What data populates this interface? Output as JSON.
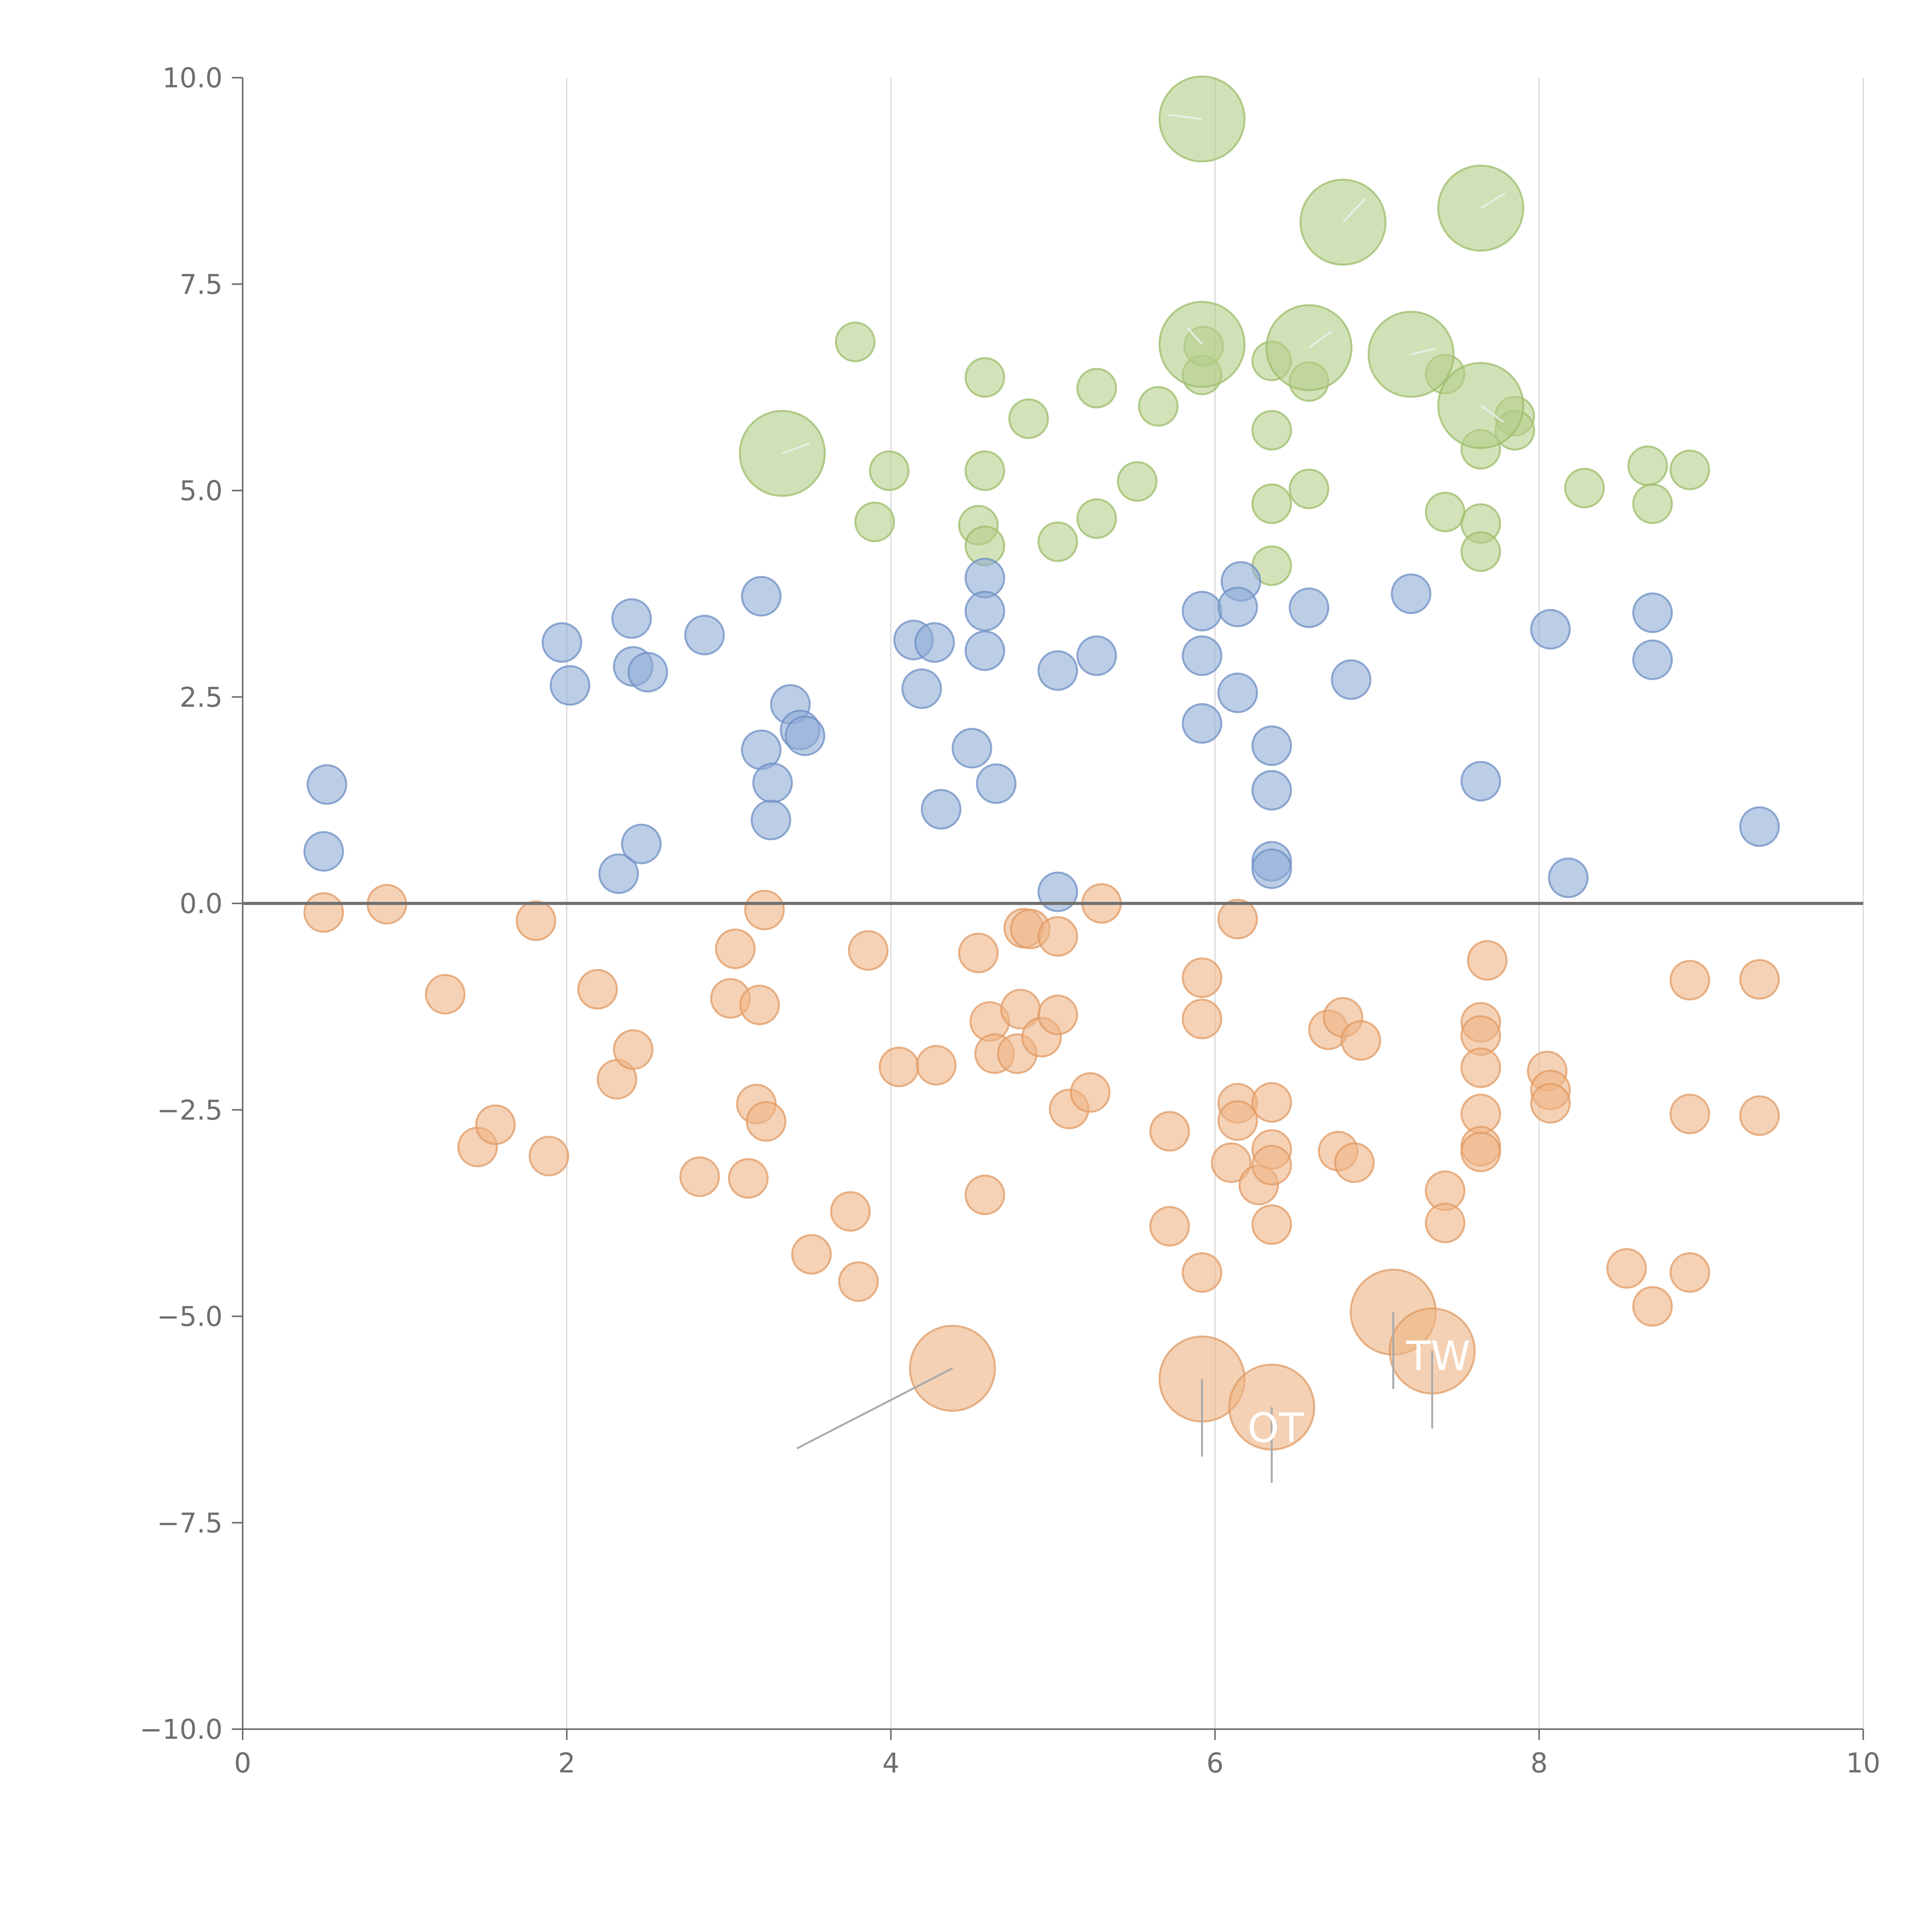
{
  "chart_data": {
    "type": "scatter",
    "title": "",
    "xlabel": "",
    "ylabel": "",
    "xlim": [
      0,
      10
    ],
    "ylim": [
      -10,
      10
    ],
    "xticks": [
      0,
      2,
      4,
      6,
      8,
      10
    ],
    "xtick_labels": [
      "0",
      "2",
      "4",
      "6",
      "8",
      "10"
    ],
    "yticks": [
      10,
      7.5,
      5,
      2.5,
      0,
      -2.5,
      -5,
      -7.5,
      -10
    ],
    "ytick_labels": [
      "10.0",
      "7.5",
      "5.0",
      "2.5",
      "0.0",
      "−2.5",
      "−5.0",
      "−7.5",
      "−10.0"
    ],
    "grid": "vertical",
    "reference_line_y": 0,
    "colors": {
      "green": "#b5cf8a",
      "green_edge": "#9cbc6a",
      "blue": "#8fabd6",
      "blue_edge": "#6e8fc4",
      "orange": "#eeb486",
      "orange_edge": "#e09a63",
      "axis": "#6e6e6e",
      "grid": "#d9d9d9",
      "zero_line": "#707070",
      "leader": "#aaaaaa",
      "leader_light": "#eeeeee"
    },
    "series": [
      {
        "name": "green",
        "color": "#b5cf8a",
        "points": [
          [
            3.78,
            6.8,
            1
          ],
          [
            4.58,
            6.37,
            1
          ],
          [
            5.27,
            6.24,
            1
          ],
          [
            5.65,
            6.02,
            1
          ],
          [
            4.85,
            5.87,
            1
          ],
          [
            3.99,
            5.24,
            1
          ],
          [
            4.58,
            5.24,
            1
          ],
          [
            5.52,
            5.11,
            1
          ],
          [
            3.9,
            4.62,
            1
          ],
          [
            4.54,
            4.58,
            1
          ],
          [
            4.58,
            4.33,
            1
          ],
          [
            5.03,
            4.38,
            1
          ],
          [
            5.27,
            4.66,
            1
          ],
          [
            5.92,
            6.4,
            1
          ],
          [
            5.93,
            6.75,
            1
          ],
          [
            6.35,
            6.57,
            1
          ],
          [
            6.58,
            6.32,
            1
          ],
          [
            6.35,
            5.73,
            1
          ],
          [
            6.35,
            4.84,
            1
          ],
          [
            6.58,
            5.02,
            1
          ],
          [
            6.35,
            4.09,
            1
          ],
          [
            7.42,
            6.41,
            1
          ],
          [
            7.42,
            4.74,
            1
          ],
          [
            7.64,
            5.5,
            1
          ],
          [
            7.64,
            4.6,
            1
          ],
          [
            7.64,
            4.26,
            1
          ],
          [
            7.85,
            5.9,
            1
          ],
          [
            7.85,
            5.73,
            1
          ],
          [
            8.28,
            5.03,
            1
          ],
          [
            8.67,
            5.3,
            1
          ],
          [
            8.7,
            4.84,
            1
          ],
          [
            8.93,
            5.25,
            1
          ],
          [
            3.33,
            5.45,
            2.2
          ],
          [
            5.92,
            9.5,
            2.2
          ],
          [
            6.79,
            8.25,
            2.2
          ],
          [
            7.64,
            8.42,
            2.2
          ],
          [
            5.92,
            6.77,
            2.2
          ],
          [
            6.58,
            6.73,
            2.2
          ],
          [
            7.21,
            6.65,
            2.2
          ],
          [
            7.64,
            6.03,
            2.2
          ]
        ]
      },
      {
        "name": "blue",
        "color": "#8fabd6",
        "points": [
          [
            0.52,
            1.44,
            1
          ],
          [
            0.5,
            0.63,
            1
          ],
          [
            1.97,
            3.16,
            1
          ],
          [
            2.02,
            2.64,
            1
          ],
          [
            2.4,
            3.45,
            1
          ],
          [
            2.41,
            2.87,
            1
          ],
          [
            2.5,
            2.8,
            1
          ],
          [
            2.85,
            3.25,
            1
          ],
          [
            2.32,
            0.36,
            1
          ],
          [
            2.46,
            0.72,
            1
          ],
          [
            3.2,
            3.72,
            1
          ],
          [
            3.38,
            2.41,
            1
          ],
          [
            3.44,
            2.1,
            1
          ],
          [
            3.47,
            2.03,
            1
          ],
          [
            3.2,
            1.86,
            1
          ],
          [
            3.27,
            1.46,
            1
          ],
          [
            3.26,
            1.01,
            1
          ],
          [
            4.14,
            3.19,
            1
          ],
          [
            4.27,
            3.16,
            1
          ],
          [
            4.19,
            2.6,
            1
          ],
          [
            4.31,
            1.14,
            1
          ],
          [
            4.5,
            1.88,
            1
          ],
          [
            4.65,
            1.45,
            1
          ],
          [
            4.58,
            3.94,
            1
          ],
          [
            4.58,
            3.54,
            1
          ],
          [
            4.58,
            3.06,
            1
          ],
          [
            5.03,
            2.82,
            1
          ],
          [
            5.27,
            3.0,
            1
          ],
          [
            5.03,
            0.14,
            1
          ],
          [
            5.92,
            3.54,
            1
          ],
          [
            5.92,
            3.0,
            1
          ],
          [
            5.92,
            2.18,
            1
          ],
          [
            6.16,
            3.9,
            1
          ],
          [
            6.14,
            3.59,
            1
          ],
          [
            6.14,
            2.55,
            1
          ],
          [
            6.58,
            3.58,
            1
          ],
          [
            6.35,
            1.91,
            1
          ],
          [
            6.35,
            1.37,
            1
          ],
          [
            6.35,
            0.51,
            1
          ],
          [
            6.35,
            0.42,
            1
          ],
          [
            6.84,
            2.71,
            1
          ],
          [
            7.21,
            3.75,
            1
          ],
          [
            7.64,
            1.48,
            1
          ],
          [
            8.07,
            3.32,
            1
          ],
          [
            8.18,
            0.31,
            1
          ],
          [
            8.7,
            3.52,
            1
          ],
          [
            8.7,
            2.95,
            1
          ],
          [
            9.36,
            0.93,
            1
          ]
        ]
      },
      {
        "name": "orange",
        "color": "#eeb486",
        "points": [
          [
            0.5,
            -0.11,
            1
          ],
          [
            0.89,
            -0.01,
            1
          ],
          [
            1.25,
            -1.1,
            1
          ],
          [
            1.45,
            -2.95,
            1
          ],
          [
            1.56,
            -2.68,
            1
          ],
          [
            1.81,
            -0.21,
            1
          ],
          [
            1.89,
            -3.06,
            1
          ],
          [
            2.19,
            -1.04,
            1
          ],
          [
            2.31,
            -2.13,
            1
          ],
          [
            2.41,
            -1.77,
            1
          ],
          [
            2.82,
            -3.31,
            1
          ],
          [
            3.01,
            -1.15,
            1
          ],
          [
            3.04,
            -0.55,
            1
          ],
          [
            3.12,
            -3.33,
            1
          ],
          [
            3.19,
            -1.23,
            1
          ],
          [
            3.17,
            -2.43,
            1
          ],
          [
            3.22,
            -0.08,
            1
          ],
          [
            3.23,
            -2.64,
            1
          ],
          [
            3.51,
            -4.25,
            1
          ],
          [
            3.75,
            -3.73,
            1
          ],
          [
            3.8,
            -4.58,
            1
          ],
          [
            3.86,
            -0.57,
            1
          ],
          [
            4.05,
            -1.98,
            1
          ],
          [
            4.28,
            -1.96,
            1
          ],
          [
            4.54,
            -0.6,
            1
          ],
          [
            4.58,
            -3.53,
            1
          ],
          [
            4.61,
            -1.43,
            1
          ],
          [
            4.64,
            -1.82,
            1
          ],
          [
            4.78,
            -1.82,
            1
          ],
          [
            4.8,
            -1.28,
            1
          ],
          [
            4.82,
            -0.3,
            1
          ],
          [
            4.86,
            -0.31,
            1
          ],
          [
            4.93,
            -1.62,
            1
          ],
          [
            5.03,
            -1.35,
            1
          ],
          [
            5.03,
            -0.4,
            1
          ],
          [
            5.1,
            -2.49,
            1
          ],
          [
            5.23,
            -2.29,
            1
          ],
          [
            5.3,
            0.0,
            1
          ],
          [
            5.72,
            -2.76,
            1
          ],
          [
            5.72,
            -3.91,
            1
          ],
          [
            5.92,
            -0.9,
            1
          ],
          [
            5.92,
            -1.4,
            1
          ],
          [
            5.92,
            -4.47,
            1
          ],
          [
            6.14,
            -0.19,
            1
          ],
          [
            6.14,
            -2.42,
            1
          ],
          [
            6.14,
            -2.63,
            1
          ],
          [
            6.1,
            -3.14,
            1
          ],
          [
            6.27,
            -3.41,
            1
          ],
          [
            6.35,
            -2.41,
            1
          ],
          [
            6.35,
            -2.98,
            1
          ],
          [
            6.35,
            -3.17,
            1
          ],
          [
            6.35,
            -3.89,
            1
          ],
          [
            6.7,
            -1.53,
            1
          ],
          [
            6.79,
            -1.38,
            1
          ],
          [
            6.9,
            -1.66,
            1
          ],
          [
            6.76,
            -3.0,
            1
          ],
          [
            6.86,
            -3.14,
            1
          ],
          [
            7.42,
            -3.48,
            1
          ],
          [
            7.42,
            -3.87,
            1
          ],
          [
            7.64,
            -1.44,
            1
          ],
          [
            7.64,
            -1.6,
            1
          ],
          [
            7.64,
            -1.99,
            1
          ],
          [
            7.64,
            -2.55,
            1
          ],
          [
            7.64,
            -2.94,
            1
          ],
          [
            7.64,
            -3.01,
            1
          ],
          [
            7.68,
            -0.69,
            1
          ],
          [
            8.05,
            -2.03,
            1
          ],
          [
            8.07,
            -2.26,
            1
          ],
          [
            8.07,
            -2.42,
            1
          ],
          [
            8.54,
            -4.42,
            1
          ],
          [
            8.7,
            -4.88,
            1
          ],
          [
            8.93,
            -0.93,
            1
          ],
          [
            8.93,
            -2.55,
            1
          ],
          [
            8.93,
            -4.47,
            1
          ],
          [
            9.36,
            -0.92,
            1
          ],
          [
            9.36,
            -2.57,
            1
          ],
          [
            4.38,
            -5.63,
            2.2
          ],
          [
            5.92,
            -5.76,
            2.2
          ],
          [
            6.35,
            -6.1,
            2.2
          ],
          [
            7.1,
            -4.95,
            2.2
          ],
          [
            7.34,
            -5.42,
            2.2
          ]
        ]
      }
    ],
    "annotations": [
      {
        "text": "TW",
        "x": 7.18,
        "y": -5.65
      },
      {
        "text": "OT",
        "x": 6.2,
        "y": -6.52
      }
    ],
    "leader_lines": [
      {
        "from": [
          4.38,
          -5.63
        ],
        "to": [
          3.42,
          -6.6
        ],
        "tone": "dark"
      },
      {
        "from": [
          5.92,
          -5.76
        ],
        "to": [
          5.92,
          -6.7
        ],
        "tone": "dark"
      },
      {
        "from": [
          6.35,
          -6.1
        ],
        "to": [
          6.35,
          -7.02
        ],
        "tone": "dark"
      },
      {
        "from": [
          7.1,
          -4.95
        ],
        "to": [
          7.1,
          -5.88
        ],
        "tone": "dark"
      },
      {
        "from": [
          7.34,
          -5.42
        ],
        "to": [
          7.34,
          -6.36
        ],
        "tone": "dark"
      },
      {
        "from": [
          5.92,
          9.5
        ],
        "to": [
          5.71,
          9.55
        ],
        "tone": "light"
      },
      {
        "from": [
          6.79,
          8.25
        ],
        "to": [
          6.93,
          8.54
        ],
        "tone": "light"
      },
      {
        "from": [
          7.64,
          8.42
        ],
        "to": [
          7.79,
          8.6
        ],
        "tone": "light"
      },
      {
        "from": [
          3.33,
          5.45
        ],
        "to": [
          3.5,
          5.57
        ],
        "tone": "light"
      },
      {
        "from": [
          5.92,
          6.77
        ],
        "to": [
          5.83,
          6.97
        ],
        "tone": "light"
      },
      {
        "from": [
          6.58,
          6.73
        ],
        "to": [
          6.72,
          6.93
        ],
        "tone": "light"
      },
      {
        "from": [
          7.21,
          6.65
        ],
        "to": [
          7.36,
          6.72
        ],
        "tone": "light"
      },
      {
        "from": [
          7.64,
          6.03
        ],
        "to": [
          7.78,
          5.83
        ],
        "tone": "light"
      }
    ]
  }
}
